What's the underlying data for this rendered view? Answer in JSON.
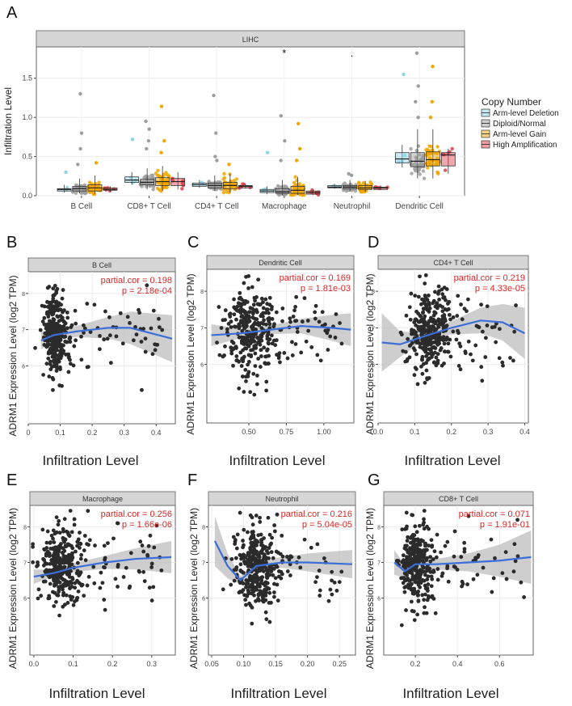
{
  "colors": {
    "deletion": "#8ed3e6",
    "diploid": "#9e9e9e",
    "gain": "#f0a500",
    "amplification": "#e03c46",
    "point": "#2b2b2b",
    "fit": "#3b6fd8",
    "band": "#bdbdbd",
    "stat": "#d62828",
    "strip": "#d6d6d6"
  },
  "chart_data": [
    {
      "panel": "A",
      "type": "box",
      "title": "LIHC",
      "ylabel": "Infiltration Level",
      "ylim": [
        0,
        1.9
      ],
      "yticks": [
        0,
        0.5,
        1.0,
        1.5
      ],
      "ytick_labels": [
        "0.0",
        "0.5",
        "1.0",
        "1.5"
      ],
      "categories": [
        "B Cell",
        "CD8+ T Cell",
        "CD4+ T Cell",
        "Macrophage",
        "Neutrophil",
        "Dendritic Cell"
      ],
      "significance": [
        "",
        "",
        "",
        "*",
        ".",
        ""
      ],
      "legend_title": "Copy Number",
      "series": [
        {
          "name": "Arm-level Deletion",
          "color_key": "deletion",
          "boxes": [
            [
              0.04,
              0.06,
              0.08,
              0.09,
              0.14
            ],
            [
              0.14,
              0.17,
              0.2,
              0.24,
              0.3
            ],
            [
              0.1,
              0.12,
              0.14,
              0.16,
              0.2
            ],
            [
              0.02,
              0.04,
              0.06,
              0.08,
              0.12
            ],
            [
              0.09,
              0.1,
              0.11,
              0.13,
              0.15
            ],
            [
              0.36,
              0.42,
              0.47,
              0.55,
              0.65
            ]
          ],
          "outliers": [
            [
              0.3
            ],
            [
              0.72
            ],
            [],
            [
              0.55
            ],
            [],
            [
              1.55
            ]
          ]
        },
        {
          "name": "Diploid/Normal",
          "color_key": "diploid",
          "boxes": [
            [
              0.03,
              0.06,
              0.09,
              0.12,
              0.22
            ],
            [
              0.08,
              0.14,
              0.17,
              0.21,
              0.35
            ],
            [
              0.06,
              0.1,
              0.13,
              0.16,
              0.26
            ],
            [
              0.01,
              0.03,
              0.05,
              0.09,
              0.2
            ],
            [
              0.06,
              0.09,
              0.11,
              0.13,
              0.2
            ],
            [
              0.22,
              0.37,
              0.44,
              0.55,
              0.85
            ]
          ],
          "outliers": [
            [
              1.3,
              0.8,
              0.6,
              0.4
            ],
            [
              0.95,
              0.85,
              0.7,
              0.6
            ],
            [
              1.28,
              0.8,
              0.5,
              0.45
            ],
            [
              1.02,
              0.7,
              0.45
            ],
            [
              0.28,
              0.26
            ],
            [
              1.82,
              1.4,
              1.2,
              1.0
            ]
          ]
        },
        {
          "name": "Arm-level Gain",
          "color_key": "gain",
          "boxes": [
            [
              0.02,
              0.06,
              0.1,
              0.14,
              0.26
            ],
            [
              0.06,
              0.13,
              0.18,
              0.23,
              0.38
            ],
            [
              0.04,
              0.09,
              0.13,
              0.17,
              0.28
            ],
            [
              0.01,
              0.03,
              0.07,
              0.12,
              0.24
            ],
            [
              0.05,
              0.08,
              0.1,
              0.13,
              0.19
            ],
            [
              0.22,
              0.38,
              0.46,
              0.56,
              0.85
            ]
          ],
          "outliers": [
            [
              0.42
            ],
            [
              1.14,
              0.7,
              0.55
            ],
            [
              0.4
            ],
            [
              0.92,
              0.6,
              0.45
            ],
            [],
            [
              1.65,
              1.2,
              1.0
            ]
          ]
        },
        {
          "name": "High Amplification",
          "color_key": "amplification",
          "boxes": [
            [
              0.05,
              0.07,
              0.08,
              0.1,
              0.12
            ],
            [
              0.08,
              0.13,
              0.18,
              0.22,
              0.3
            ],
            [
              0.09,
              0.1,
              0.12,
              0.13,
              0.15
            ],
            [
              0.01,
              0.02,
              0.04,
              0.06,
              0.08
            ],
            [
              0.07,
              0.08,
              0.1,
              0.11,
              0.13
            ],
            [
              0.28,
              0.38,
              0.52,
              0.55,
              0.6
            ]
          ],
          "outliers": [
            [],
            [],
            [],
            [],
            [],
            []
          ]
        }
      ]
    },
    {
      "panel": "B",
      "type": "scatter",
      "title": "B Cell",
      "xlabel": "Infiltration Level",
      "ylabel": "ADRM1 Expression Level (log2 TPM)",
      "stat1": "partial.cor = 0.198",
      "stat2": "p = 2.18e-04",
      "xlim": [
        0,
        0.46
      ],
      "ylim": [
        4.4,
        8.6
      ],
      "xticks": [
        0,
        0.1,
        0.2,
        0.3,
        0.4
      ],
      "xtick_labels": [
        "0",
        "0.1",
        "0.2",
        "0.3",
        "0.4"
      ],
      "yticks": [
        6,
        7,
        8
      ],
      "ytick_labels": [
        "6",
        "7",
        "8"
      ],
      "x_center": 0.07,
      "x_spread": 0.025,
      "x_tail": 0.42,
      "fit": {
        "x": [
          0.04,
          0.08,
          0.15,
          0.25,
          0.32,
          0.45
        ],
        "y": [
          6.7,
          6.85,
          6.95,
          7.05,
          7.05,
          6.75
        ],
        "band": [
          0.25,
          0.12,
          0.15,
          0.3,
          0.45,
          0.65
        ]
      }
    },
    {
      "panel": "C",
      "type": "scatter",
      "title": "Dendritic Cell",
      "xlabel": "Infiltration Level",
      "ylabel": "ADRM1 Expression Level (log2 TPM)",
      "stat1": "partial.cor = 0.169",
      "stat2": "p = 1.81e-03",
      "xlim": [
        0.22,
        1.2
      ],
      "ylim": [
        4.4,
        8.6
      ],
      "xticks": [
        0.5,
        0.75,
        1.0
      ],
      "xtick_labels": [
        "0.50",
        "0.75",
        "1.00"
      ],
      "yticks": [
        6,
        7,
        8
      ],
      "ytick_labels": [
        "6",
        "7",
        "8"
      ],
      "x_center": 0.45,
      "x_spread": 0.11,
      "x_tail": 1.15,
      "fit": {
        "x": [
          0.25,
          0.45,
          0.65,
          0.85,
          1.05,
          1.18
        ],
        "y": [
          6.8,
          6.85,
          6.95,
          7.05,
          7.0,
          6.95
        ],
        "band": [
          0.3,
          0.12,
          0.12,
          0.2,
          0.35,
          0.45
        ]
      }
    },
    {
      "panel": "D",
      "type": "scatter",
      "title": "CD4+ T Cell",
      "xlabel": "Infiltration Level",
      "ylabel": "ADRM1 Expression Level (log2 TPM)",
      "stat1": "partial.cor = 0.219",
      "stat2": "p = 4.33e-05",
      "xlim": [
        0,
        0.41
      ],
      "ylim": [
        4.4,
        8.6
      ],
      "xticks": [
        0,
        0.1,
        0.2,
        0.3,
        0.4
      ],
      "xtick_labels": [
        "0.0",
        "0.1",
        "0.2",
        "0.3",
        "0.4"
      ],
      "yticks": [
        6,
        7,
        8
      ],
      "ytick_labels": [
        "6",
        "7",
        "8"
      ],
      "x_center": 0.12,
      "x_spread": 0.04,
      "x_tail": 0.38,
      "fit": {
        "x": [
          0.01,
          0.06,
          0.12,
          0.2,
          0.28,
          0.34,
          0.4
        ],
        "y": [
          6.6,
          6.55,
          6.75,
          7.0,
          7.2,
          7.15,
          6.85
        ],
        "band": [
          0.8,
          0.35,
          0.12,
          0.18,
          0.35,
          0.5,
          0.7
        ]
      }
    },
    {
      "panel": "E",
      "type": "scatter",
      "title": "Macrophage",
      "xlabel": "Infiltration Level",
      "ylabel": "ADRM1 Expression Level (log2 TPM)",
      "stat1": "partial.cor = 0.256",
      "stat2": "p = 1.66e-06",
      "xlim": [
        -0.01,
        0.36
      ],
      "ylim": [
        4.4,
        8.6
      ],
      "xticks": [
        0,
        0.1,
        0.2,
        0.3
      ],
      "xtick_labels": [
        "0.0",
        "0.1",
        "0.2",
        "0.3"
      ],
      "yticks": [
        6,
        7,
        8
      ],
      "ytick_labels": [
        "6",
        "7",
        "8"
      ],
      "x_center": 0.05,
      "x_spread": 0.035,
      "x_tail": 0.33,
      "fit": {
        "x": [
          0,
          0.05,
          0.1,
          0.18,
          0.26,
          0.35
        ],
        "y": [
          6.6,
          6.7,
          6.85,
          7.0,
          7.1,
          7.15
        ],
        "band": [
          0.2,
          0.1,
          0.12,
          0.18,
          0.3,
          0.45
        ]
      }
    },
    {
      "panel": "F",
      "type": "scatter",
      "title": "Neutrophil",
      "xlabel": "Infiltration Level",
      "ylabel": "ADRM1 Expression Level (log2 TPM)",
      "stat1": "partial.cor = 0.216",
      "stat2": "p = 5.04e-05",
      "xlim": [
        0.045,
        0.275
      ],
      "ylim": [
        4.4,
        8.6
      ],
      "xticks": [
        0.05,
        0.1,
        0.15,
        0.2,
        0.25
      ],
      "xtick_labels": [
        "0.05",
        "0.10",
        "0.15",
        "0.20",
        "0.25"
      ],
      "yticks": [
        6,
        7,
        8
      ],
      "ytick_labels": [
        "6",
        "7",
        "8"
      ],
      "x_center": 0.11,
      "x_spread": 0.022,
      "x_tail": 0.26,
      "fit": {
        "x": [
          0.055,
          0.075,
          0.095,
          0.12,
          0.16,
          0.2,
          0.27
        ],
        "y": [
          7.6,
          6.9,
          6.5,
          6.9,
          7.0,
          7.0,
          6.95
        ],
        "band": [
          0.7,
          0.35,
          0.12,
          0.12,
          0.15,
          0.25,
          0.4
        ]
      }
    },
    {
      "panel": "G",
      "type": "scatter",
      "title": "CD8+ T Cell",
      "xlabel": "Infiltration Level",
      "ylabel": "ADRM1 Expression Level (log2 TPM)",
      "stat1": "partial.cor = 0.071",
      "stat2": "p = 1.91e-01",
      "xlim": [
        0.05,
        0.76
      ],
      "ylim": [
        4.4,
        8.6
      ],
      "xticks": [
        0.2,
        0.4,
        0.6
      ],
      "xtick_labels": [
        "0.2",
        "0.4",
        "0.6"
      ],
      "yticks": [
        6,
        7,
        8
      ],
      "ytick_labels": [
        "6",
        "7",
        "8"
      ],
      "x_center": 0.18,
      "x_spread": 0.05,
      "x_tail": 0.72,
      "fit": {
        "x": [
          0.1,
          0.15,
          0.2,
          0.3,
          0.45,
          0.6,
          0.75
        ],
        "y": [
          7.0,
          6.75,
          6.95,
          6.95,
          7.0,
          7.05,
          7.15
        ],
        "band": [
          0.35,
          0.18,
          0.12,
          0.15,
          0.25,
          0.45,
          0.75
        ]
      }
    }
  ]
}
